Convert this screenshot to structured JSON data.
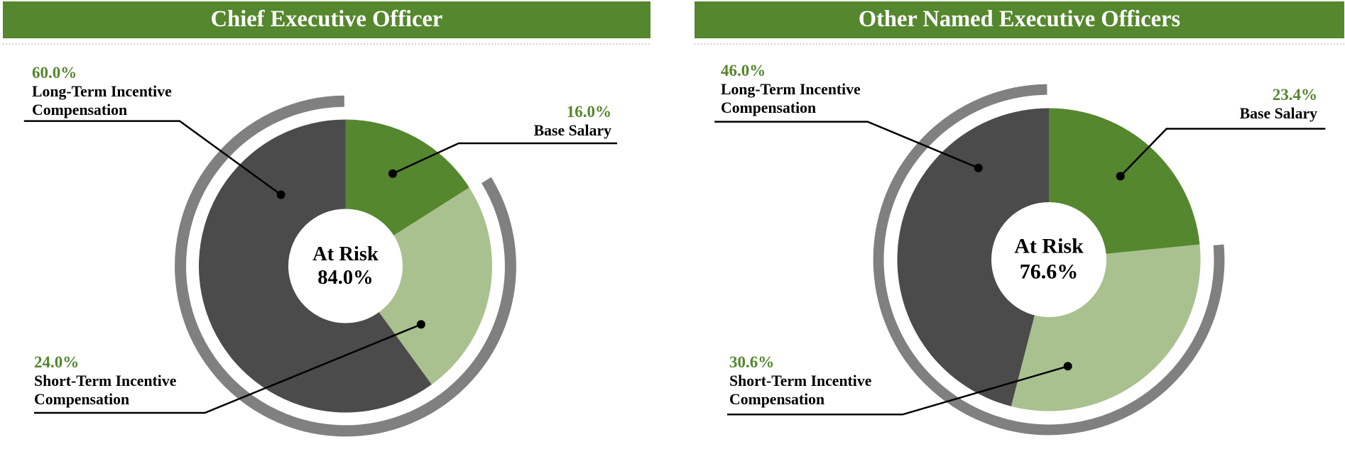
{
  "page": {
    "background": "#ffffff"
  },
  "colors": {
    "header_green": "#55872e",
    "dark_green": "#55872e",
    "light_green": "#a9c18f",
    "dark_gray": "#4b4b4b",
    "ring_gray": "#808080",
    "percent_green": "#55872e",
    "text_black": "#000000",
    "title_white": "#ffffff",
    "leader_black": "#000000"
  },
  "charts": [
    {
      "id": "ceo",
      "title": "Chief Executive Officer",
      "center": {
        "line1": "At Risk",
        "line2": "84.0%"
      },
      "callouts": {
        "long_term": {
          "pct": "60.0%",
          "name": "Long-Term Incentive\nCompensation"
        },
        "base": {
          "pct": "16.0%",
          "name": "Base Salary"
        },
        "short_term": {
          "pct": "24.0%",
          "name": "Short-Term Incentive\nCompensation"
        }
      }
    },
    {
      "id": "neo",
      "title": "Other Named Executive Officers",
      "center": {
        "line1": "At Risk",
        "line2": "76.6%"
      },
      "callouts": {
        "long_term": {
          "pct": "46.0%",
          "name": "Long-Term Incentive\nCompensation"
        },
        "base": {
          "pct": "23.4%",
          "name": "Base Salary"
        },
        "short_term": {
          "pct": "30.6%",
          "name": "Short-Term Incentive\nCompensation"
        }
      }
    }
  ],
  "chart_data": [
    {
      "type": "pie",
      "subtype": "donut-with-at-risk-ring",
      "title": "Chief Executive Officer",
      "categories": [
        "Base Salary",
        "Short-Term Incentive Compensation",
        "Long-Term Incentive Compensation"
      ],
      "values": [
        16.0,
        24.0,
        60.0
      ],
      "slice_colors": [
        "#55872e",
        "#a9c18f",
        "#4b4b4b"
      ],
      "start_angle_deg": 0,
      "direction": "clockwise",
      "center_label": "At Risk 84.0%",
      "at_risk_pct": 84.0,
      "ring_note": "outer gray ring spans the at-risk (STI + LTI) portion"
    },
    {
      "type": "pie",
      "subtype": "donut-with-at-risk-ring",
      "title": "Other Named Executive Officers",
      "categories": [
        "Base Salary",
        "Short-Term Incentive Compensation",
        "Long-Term Incentive Compensation"
      ],
      "values": [
        23.4,
        30.6,
        46.0
      ],
      "slice_colors": [
        "#55872e",
        "#a9c18f",
        "#4b4b4b"
      ],
      "start_angle_deg": 0,
      "direction": "clockwise",
      "center_label": "At Risk 76.6%",
      "at_risk_pct": 76.6,
      "ring_note": "outer gray ring spans the at-risk (STI + LTI) portion"
    }
  ]
}
